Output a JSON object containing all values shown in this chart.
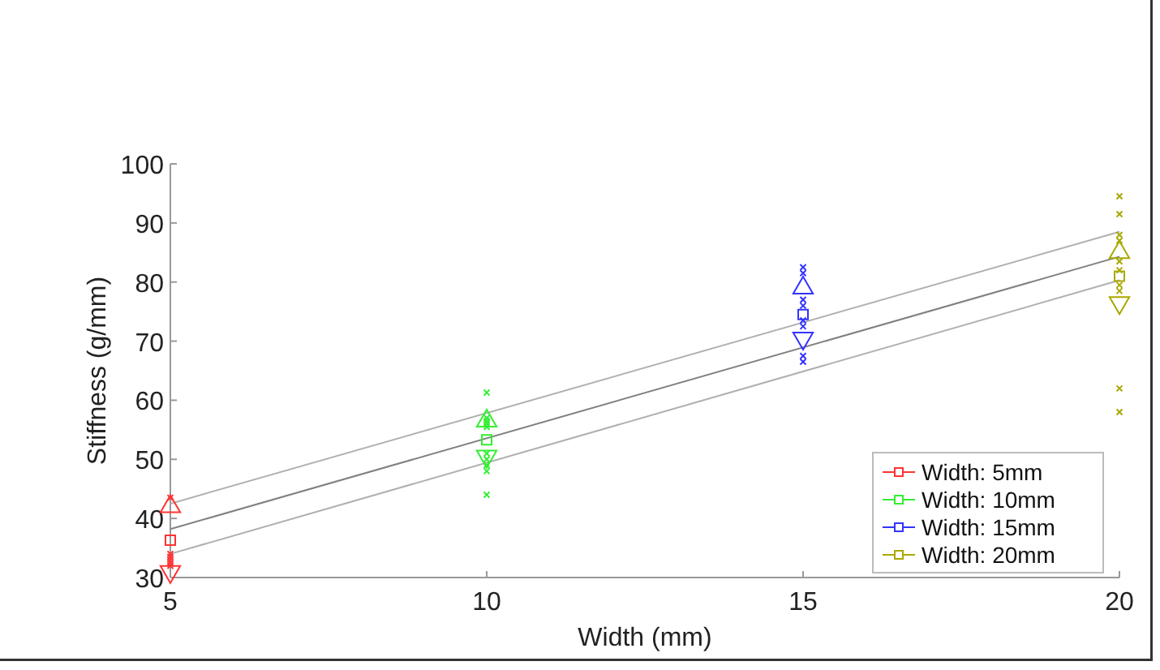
{
  "chart_data": {
    "type": "scatter",
    "xlabel": "Width (mm)",
    "ylabel": "Stiffness (g/mm)",
    "xlim": [
      5,
      20
    ],
    "ylim": [
      30,
      100
    ],
    "xticks": [
      5,
      10,
      15,
      20
    ],
    "yticks": [
      30,
      40,
      50,
      60,
      70,
      80,
      90,
      100
    ],
    "grid": false,
    "legend": "bottom right",
    "series": [
      {
        "type": "line",
        "color": "#b0b0b0",
        "x": [
          5,
          20
        ],
        "values": [
          42.5,
          88.5
        ],
        "marker": "none"
      },
      {
        "type": "line",
        "color": "#808080",
        "x": [
          5,
          20
        ],
        "values": [
          38.2,
          84.3
        ],
        "marker": "none"
      },
      {
        "type": "line",
        "color": "#b0b0b0",
        "x": [
          5,
          20
        ],
        "values": [
          34,
          80.3
        ],
        "marker": "none"
      },
      {
        "type": "scatter",
        "color": "#ff3333",
        "marker": "cross",
        "x": [
          5,
          5,
          5,
          5,
          5,
          5
        ],
        "values": [
          43.5,
          34,
          33.5,
          33,
          32.5,
          32
        ]
      },
      {
        "type": "scatter",
        "color": "#33ee33",
        "marker": "cross",
        "x": [
          10,
          10,
          10,
          10,
          10,
          10,
          10,
          10,
          10,
          10
        ],
        "values": [
          61.3,
          57,
          56.5,
          56,
          55.5,
          51,
          50,
          49,
          48,
          44
        ]
      },
      {
        "type": "scatter",
        "color": "#3333ff",
        "marker": "cross",
        "x": [
          15,
          15,
          15,
          15,
          15,
          15,
          15,
          15
        ],
        "values": [
          82.5,
          81.5,
          77,
          76,
          73.5,
          72.5,
          67.5,
          66.5
        ]
      },
      {
        "type": "scatter",
        "color": "#a8a800",
        "marker": "cross",
        "x": [
          20,
          20,
          20,
          20,
          20,
          20,
          20,
          20,
          20,
          20
        ],
        "values": [
          94.5,
          91.5,
          88,
          87,
          83.5,
          82,
          79.5,
          78.5,
          62,
          58
        ]
      },
      {
        "type": "scatter",
        "marker": "triangle",
        "x": [
          5,
          10,
          15,
          20
        ],
        "values": [
          42,
          56.5,
          79,
          85
        ],
        "colors": [
          "#ff3333",
          "#33ee33",
          "#3333ff",
          "#a8a800"
        ]
      },
      {
        "type": "scatter",
        "marker": "triangle",
        "x": [
          5,
          10,
          15,
          20
        ],
        "values": [
          31,
          50.5,
          70.5,
          76.5
        ],
        "colors": [
          "#ff3333",
          "#33ee33",
          "#3333ff",
          "#a8a800"
        ]
      },
      {
        "name": "Width: 5mm",
        "color": "#ff3333",
        "marker": "square",
        "x": [
          5
        ],
        "values": [
          36.3
        ]
      },
      {
        "name": "Width: 10mm",
        "color": "#33ee33",
        "marker": "square",
        "x": [
          10
        ],
        "values": [
          53.3
        ]
      },
      {
        "name": "Width: 15mm",
        "color": "#3333ff",
        "marker": "square",
        "x": [
          15
        ],
        "values": [
          74.5
        ]
      },
      {
        "name": "Width: 20mm",
        "color": "#a8a800",
        "marker": "square",
        "x": [
          20
        ],
        "values": [
          81
        ]
      }
    ]
  }
}
